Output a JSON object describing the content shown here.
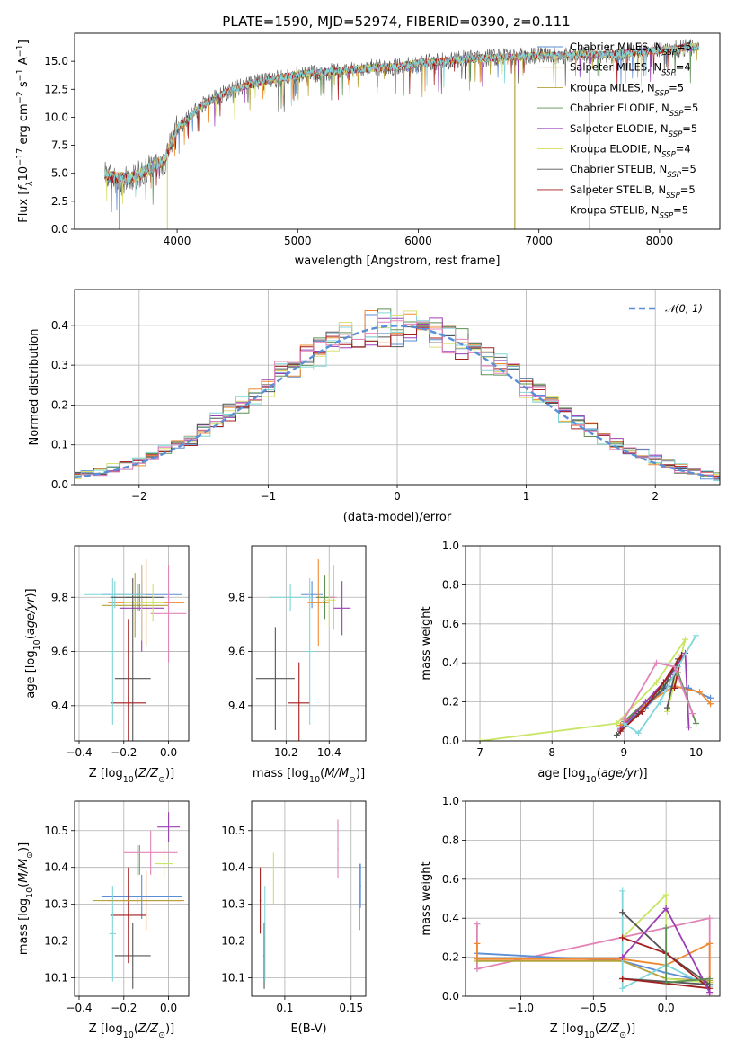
{
  "figure": {
    "title": "PLATE=1590, MJD=52974, FIBERID=0390, z=0.111"
  },
  "colors": {
    "Chabrier MILES": "#5b8ed6",
    "Salpeter MILES": "#ef8a32",
    "Kroupa MILES": "#b5a23a",
    "Chabrier ELODIE": "#5d8f55",
    "Salpeter ELODIE": "#9b40b3",
    "Kroupa ELODIE": "#d9e070",
    "Chabrier STELIB": "#555555",
    "Salpeter STELIB": "#a31e1e",
    "Kroupa STELIB": "#80d6d8",
    "pink": "#e384b8",
    "lime": "#c8e666",
    "dashed_model": "#5b8ed6",
    "grid": "#b0b0b0"
  },
  "chart_data": [
    {
      "id": "spectrum",
      "type": "line",
      "xlabel": "wavelength [Angstrom, rest frame]",
      "ylabel": "Flux [fλ10⁻¹⁷ erg cm⁻² s⁻¹ A⁻¹]",
      "xlim": [
        3150,
        8500
      ],
      "ylim": [
        0,
        17.5
      ],
      "xticks": [
        4000,
        5000,
        6000,
        7000,
        8000
      ],
      "yticks": [
        0.0,
        2.5,
        5.0,
        7.5,
        10.0,
        12.5,
        15.0
      ],
      "grid": false,
      "legend_position": "right",
      "series": [
        {
          "name": "Chabrier MILES, N",
          "sub": "SSP",
          "suffix": "=5"
        },
        {
          "name": "Salpeter MILES, N",
          "sub": "SSP",
          "suffix": "=4"
        },
        {
          "name": "Kroupa MILES, N",
          "sub": "SSP",
          "suffix": "=5"
        },
        {
          "name": "Chabrier ELODIE, N",
          "sub": "SSP",
          "suffix": "=5"
        },
        {
          "name": "Salpeter ELODIE, N",
          "sub": "SSP",
          "suffix": "=5"
        },
        {
          "name": "Kroupa ELODIE, N",
          "sub": "SSP",
          "suffix": "=4"
        },
        {
          "name": "Chabrier STELIB, N",
          "sub": "SSP",
          "suffix": "=5"
        },
        {
          "name": "Salpeter STELIB, N",
          "sub": "SSP",
          "suffix": "=5"
        },
        {
          "name": "Kroupa STELIB, N",
          "sub": "SSP",
          "suffix": "=5"
        }
      ],
      "continuum": {
        "x": [
          3400,
          3500,
          3600,
          3700,
          3800,
          3900,
          4000,
          4200,
          4400,
          4600,
          4800,
          5000,
          5200,
          5400,
          5600,
          5800,
          6000,
          6200,
          6400,
          6600,
          6800,
          7000,
          7200,
          7400,
          7600,
          7800,
          8000,
          8200,
          8300
        ],
        "y": [
          4.8,
          4.6,
          4.5,
          5.0,
          5.6,
          6.2,
          9.0,
          11.0,
          12.2,
          12.9,
          13.4,
          13.8,
          14.0,
          14.2,
          14.4,
          14.5,
          14.8,
          15.0,
          15.2,
          15.3,
          15.4,
          15.5,
          15.5,
          15.6,
          15.6,
          15.8,
          16.0,
          16.2,
          16.3
        ]
      },
      "drops_to_zero": [
        3520,
        3920,
        6800,
        7420
      ]
    },
    {
      "id": "residuals",
      "type": "histogram",
      "xlabel": "(data-model)/error",
      "ylabel": "Normed distribution",
      "xlim": [
        -2.5,
        2.5
      ],
      "ylim": [
        0,
        0.49
      ],
      "xticks": [
        -2,
        -1,
        0,
        1,
        2
      ],
      "yticks": [
        0.0,
        0.1,
        0.2,
        0.3,
        0.4
      ],
      "grid": true,
      "legend_position": "upper right",
      "model_label": "𝒩(0, 1)",
      "bin_width": 0.1
    },
    {
      "id": "age_vs_Z",
      "type": "scatter",
      "xlabel": "Z [log₁₀(Z/Z⊙)]",
      "ylabel": "age  [log₁₀(age/yr)]",
      "xlim": [
        -0.42,
        0.09
      ],
      "ylim": [
        9.27,
        9.99
      ],
      "xticks": [
        -0.4,
        -0.2,
        0.0
      ],
      "yticks": [
        9.4,
        9.6,
        9.8
      ],
      "grid": true
    },
    {
      "id": "age_vs_mass",
      "type": "scatter",
      "xlabel": "mass [log₁₀(M/M⊙)]",
      "ylabel": "",
      "xlim": [
        10.04,
        10.57
      ],
      "ylim": [
        9.27,
        9.99
      ],
      "xticks": [
        10.2,
        10.4
      ],
      "yticks": [
        9.4,
        9.6,
        9.8
      ],
      "grid": true
    },
    {
      "id": "massweight_vs_age",
      "type": "line",
      "xlabel": "age  [log₁₀(age/yr)]",
      "ylabel": "mass weight",
      "xlim": [
        6.8,
        10.33
      ],
      "ylim": [
        0,
        1.0
      ],
      "xticks": [
        7,
        8,
        9,
        10
      ],
      "yticks": [
        0.0,
        0.2,
        0.4,
        0.6,
        0.8,
        1.0
      ],
      "grid": true
    },
    {
      "id": "mass_vs_Z",
      "type": "scatter",
      "xlabel": "Z [log₁₀(Z/Z⊙)]",
      "ylabel": "mass [log₁₀(M/M⊙)]",
      "xlim": [
        -0.42,
        0.09
      ],
      "ylim": [
        10.05,
        10.58
      ],
      "xticks": [
        -0.4,
        -0.2,
        0.0
      ],
      "yticks": [
        10.1,
        10.2,
        10.3,
        10.4,
        10.5
      ],
      "grid": true
    },
    {
      "id": "mass_vs_EBV",
      "type": "scatter",
      "xlabel": "E(B-V)",
      "ylabel": "",
      "xlim": [
        0.075,
        0.161
      ],
      "ylim": [
        10.05,
        10.58
      ],
      "xticks": [
        0.1,
        0.15
      ],
      "yticks": [
        10.1,
        10.2,
        10.3,
        10.4,
        10.5
      ],
      "grid": true
    },
    {
      "id": "massweight_vs_Z",
      "type": "line",
      "xlabel": "Z [log₁₀(Z/Z⊙)]",
      "ylabel": "mass weight",
      "xlim": [
        -1.38,
        0.37
      ],
      "ylim": [
        0,
        1.0
      ],
      "xticks": [
        -1.0,
        -0.5,
        0.0
      ],
      "yticks": [
        0.0,
        0.2,
        0.4,
        0.6,
        0.8,
        1.0
      ],
      "grid": true
    }
  ]
}
